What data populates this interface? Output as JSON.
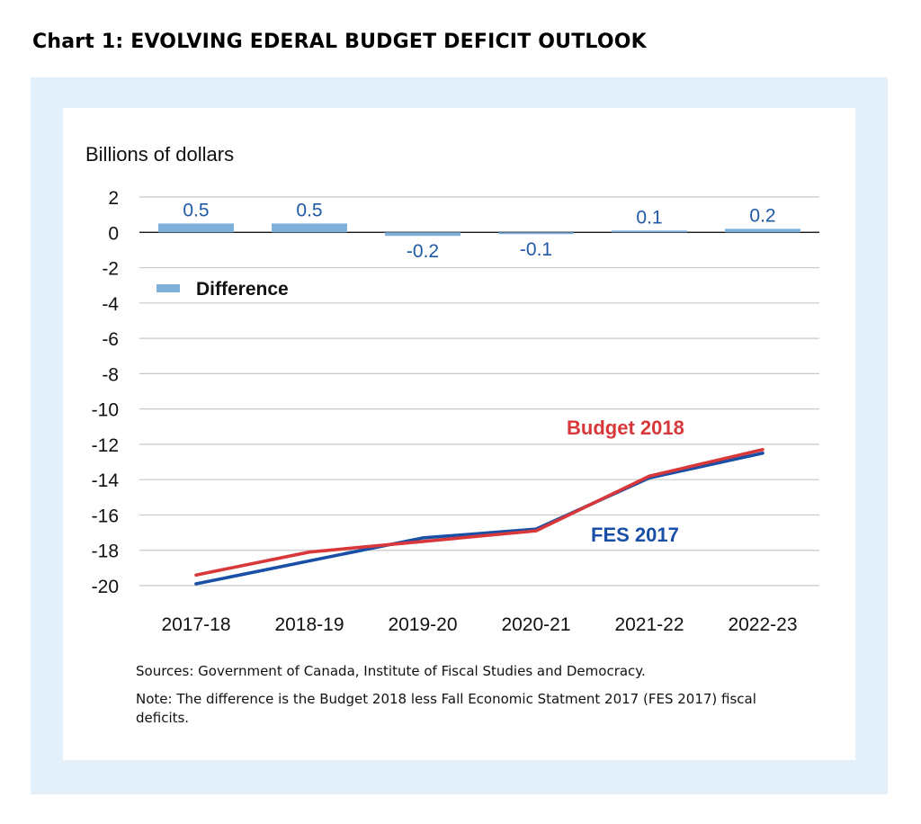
{
  "heading": "Chart 1: EVOLVING EDERAL BUDGET DEFICIT OUTLOOK",
  "sources": "Sources: Government of Canada, Institute of Fiscal Studies and Democracy.",
  "note": "Note: The difference is the Budget 2018 less Fall Economic Statment 2017 (FES 2017) fiscal deficits.",
  "colors": {
    "frame": "#e3f0fa",
    "bars": "#7fb0d9",
    "bar_labels": "#1f5aa6",
    "budget_2018": "#d9383a",
    "fes_2017": "#1a4fa8",
    "grid": "#c8c8c8"
  },
  "chart_data": {
    "type": "line",
    "ylabel": "Billions of dollars",
    "ylim": [
      -20,
      2
    ],
    "yticks": [
      2,
      0,
      -2,
      -4,
      -6,
      -8,
      -10,
      -12,
      -14,
      -16,
      -18,
      -20
    ],
    "categories": [
      "2017-18",
      "2018-19",
      "2019-20",
      "2020-21",
      "2021-22",
      "2022-23"
    ],
    "grid": true,
    "bars": {
      "name": "Difference",
      "values": [
        0.5,
        0.5,
        -0.2,
        -0.1,
        0.1,
        0.2
      ],
      "labels": [
        "0.5",
        "0.5",
        "-0.2",
        "-0.1",
        "0.1",
        "0.2"
      ]
    },
    "series": [
      {
        "name": "Budget 2018",
        "values": [
          -19.4,
          -18.1,
          -17.5,
          -16.9,
          -13.8,
          -12.3
        ]
      },
      {
        "name": "FES 2017",
        "values": [
          -19.9,
          -18.6,
          -17.3,
          -16.8,
          -13.9,
          -12.5
        ]
      }
    ],
    "legend": "top-left"
  }
}
